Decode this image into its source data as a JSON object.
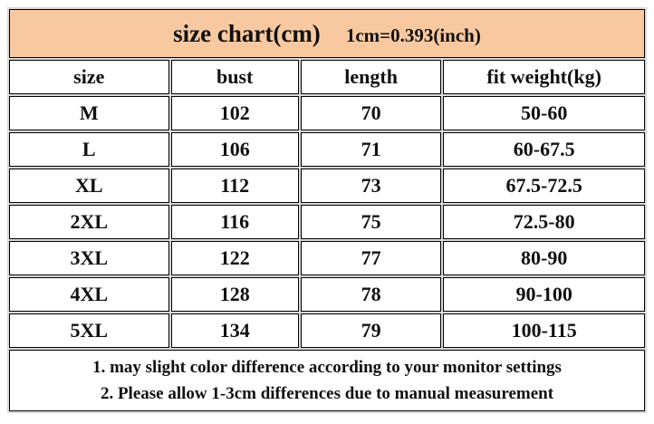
{
  "title": "size chart(cm)",
  "unit_note": "1cm=0.393(inch)",
  "table": {
    "header": [
      "size",
      "bust",
      "length",
      "fit weight(kg)"
    ],
    "rows": [
      [
        "M",
        "102",
        "70",
        "50-60"
      ],
      [
        "L",
        "106",
        "71",
        "60-67.5"
      ],
      [
        "XL",
        "112",
        "73",
        "67.5-72.5"
      ],
      [
        "2XL",
        "116",
        "75",
        "72.5-80"
      ],
      [
        "3XL",
        "122",
        "77",
        "80-90"
      ],
      [
        "4XL",
        "128",
        "78",
        "90-100"
      ],
      [
        "5XL",
        "134",
        "79",
        "100-115"
      ]
    ]
  },
  "notes": [
    "1. may slight color difference according to your monitor settings",
    "2. Please allow 1-3cm differences due to manual measurement"
  ]
}
